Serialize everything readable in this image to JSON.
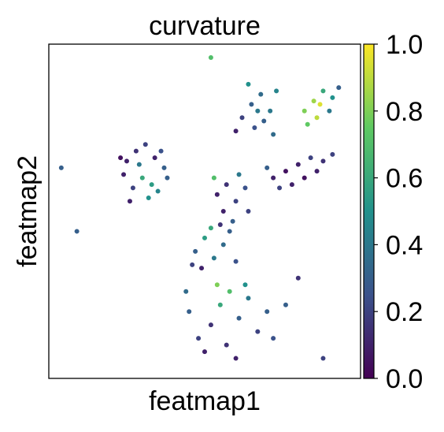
{
  "chart_data": {
    "type": "scatter",
    "title": "curvature",
    "xlabel": "featmap1",
    "ylabel": "featmap2",
    "colormap": "viridis",
    "xlim": [
      0,
      100
    ],
    "ylim": [
      0,
      100
    ],
    "clim": [
      0,
      1
    ],
    "cticks": [
      {
        "value": 0,
        "label": "0.0"
      },
      0.2,
      0.4,
      0.6,
      0.8,
      {
        "value": 1,
        "label": "1.0"
      }
    ],
    "x": [
      25,
      28,
      31,
      34,
      37,
      30,
      33,
      27,
      24,
      36,
      29,
      32,
      26,
      35,
      38,
      23,
      62,
      65,
      68,
      71,
      66,
      60,
      73,
      69,
      64,
      72,
      67,
      82,
      85,
      88,
      91,
      86,
      83,
      90,
      93,
      87,
      72,
      76,
      80,
      84,
      88,
      78,
      74,
      82,
      70,
      86,
      91,
      54,
      57,
      60,
      63,
      56,
      59,
      53,
      61,
      64,
      55,
      47,
      50,
      53,
      46,
      56,
      49,
      58,
      52,
      60,
      45,
      48,
      52,
      55,
      58,
      61,
      64,
      67,
      50,
      57,
      63,
      70,
      44,
      54,
      60,
      72,
      80,
      76,
      4,
      9,
      52,
      88
    ],
    "y": [
      65,
      68,
      70,
      66,
      63,
      60,
      58,
      57,
      61,
      68,
      64,
      54,
      53,
      56,
      60,
      66,
      78,
      82,
      85,
      80,
      75,
      74,
      86,
      77,
      88,
      73,
      80,
      80,
      83,
      86,
      84,
      78,
      76,
      80,
      87,
      82,
      60,
      62,
      64,
      66,
      65,
      58,
      57,
      60,
      63,
      62,
      67,
      55,
      58,
      53,
      57,
      50,
      47,
      60,
      61,
      50,
      46,
      38,
      42,
      36,
      34,
      40,
      33,
      44,
      45,
      35,
      20,
      12,
      16,
      22,
      26,
      18,
      24,
      14,
      8,
      10,
      28,
      20,
      26,
      28,
      6,
      12,
      30,
      22,
      63,
      44,
      96,
      6
    ],
    "values": [
      0.1,
      0.15,
      0.2,
      0.1,
      0.3,
      0.6,
      0.55,
      0.2,
      0.1,
      0.25,
      0.4,
      0.5,
      0.1,
      0.45,
      0.3,
      0.05,
      0.2,
      0.3,
      0.35,
      0.4,
      0.25,
      0.1,
      0.45,
      0.3,
      0.5,
      0.35,
      0.4,
      0.8,
      0.85,
      0.6,
      0.5,
      0.9,
      0.75,
      0.4,
      0.3,
      0.95,
      0.1,
      0.05,
      0.1,
      0.2,
      0.15,
      0.1,
      0.2,
      0.05,
      0.3,
      0.1,
      0.2,
      0.1,
      0.15,
      0.2,
      0.25,
      0.1,
      0.3,
      0.7,
      0.4,
      0.2,
      0.15,
      0.3,
      0.55,
      0.4,
      0.2,
      0.35,
      0.1,
      0.3,
      0.6,
      0.25,
      0.3,
      0.2,
      0.15,
      0.6,
      0.7,
      0.3,
      0.4,
      0.2,
      0.1,
      0.15,
      0.5,
      0.3,
      0.35,
      0.8,
      0.1,
      0.25,
      0.15,
      0.3,
      0.3,
      0.3,
      0.7,
      0.2
    ]
  }
}
